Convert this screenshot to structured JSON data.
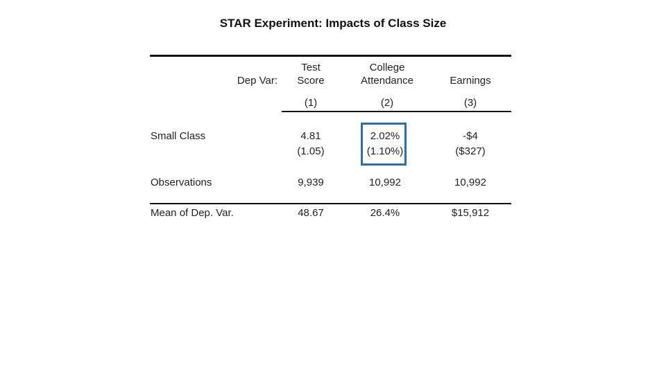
{
  "title": "STAR Experiment: Impacts of Class Size",
  "header": {
    "dep_var_label": "Dep Var:",
    "columns": [
      {
        "line1": "Test",
        "line2": "Score",
        "number": "(1)"
      },
      {
        "line1": "College",
        "line2": "Attendance",
        "number": "(2)"
      },
      {
        "line1": "",
        "line2": "Earnings",
        "number": "(3)"
      }
    ]
  },
  "rows": {
    "small_class": {
      "label": "Small Class",
      "coefficients": [
        "4.81",
        "2.02%",
        "-$4"
      ],
      "std_errors": [
        "(1.05)",
        "(1.10%)",
        "($327)"
      ]
    },
    "observations": {
      "label": "Observations",
      "values": [
        "9,939",
        "10,992",
        "10,992"
      ]
    },
    "mean": {
      "label": "Mean of Dep. Var.",
      "values": [
        "48.67",
        "26.4%",
        "$15,912"
      ]
    }
  },
  "colors": {
    "highlight_border": "#2a6fa8",
    "rules": "#111111"
  }
}
